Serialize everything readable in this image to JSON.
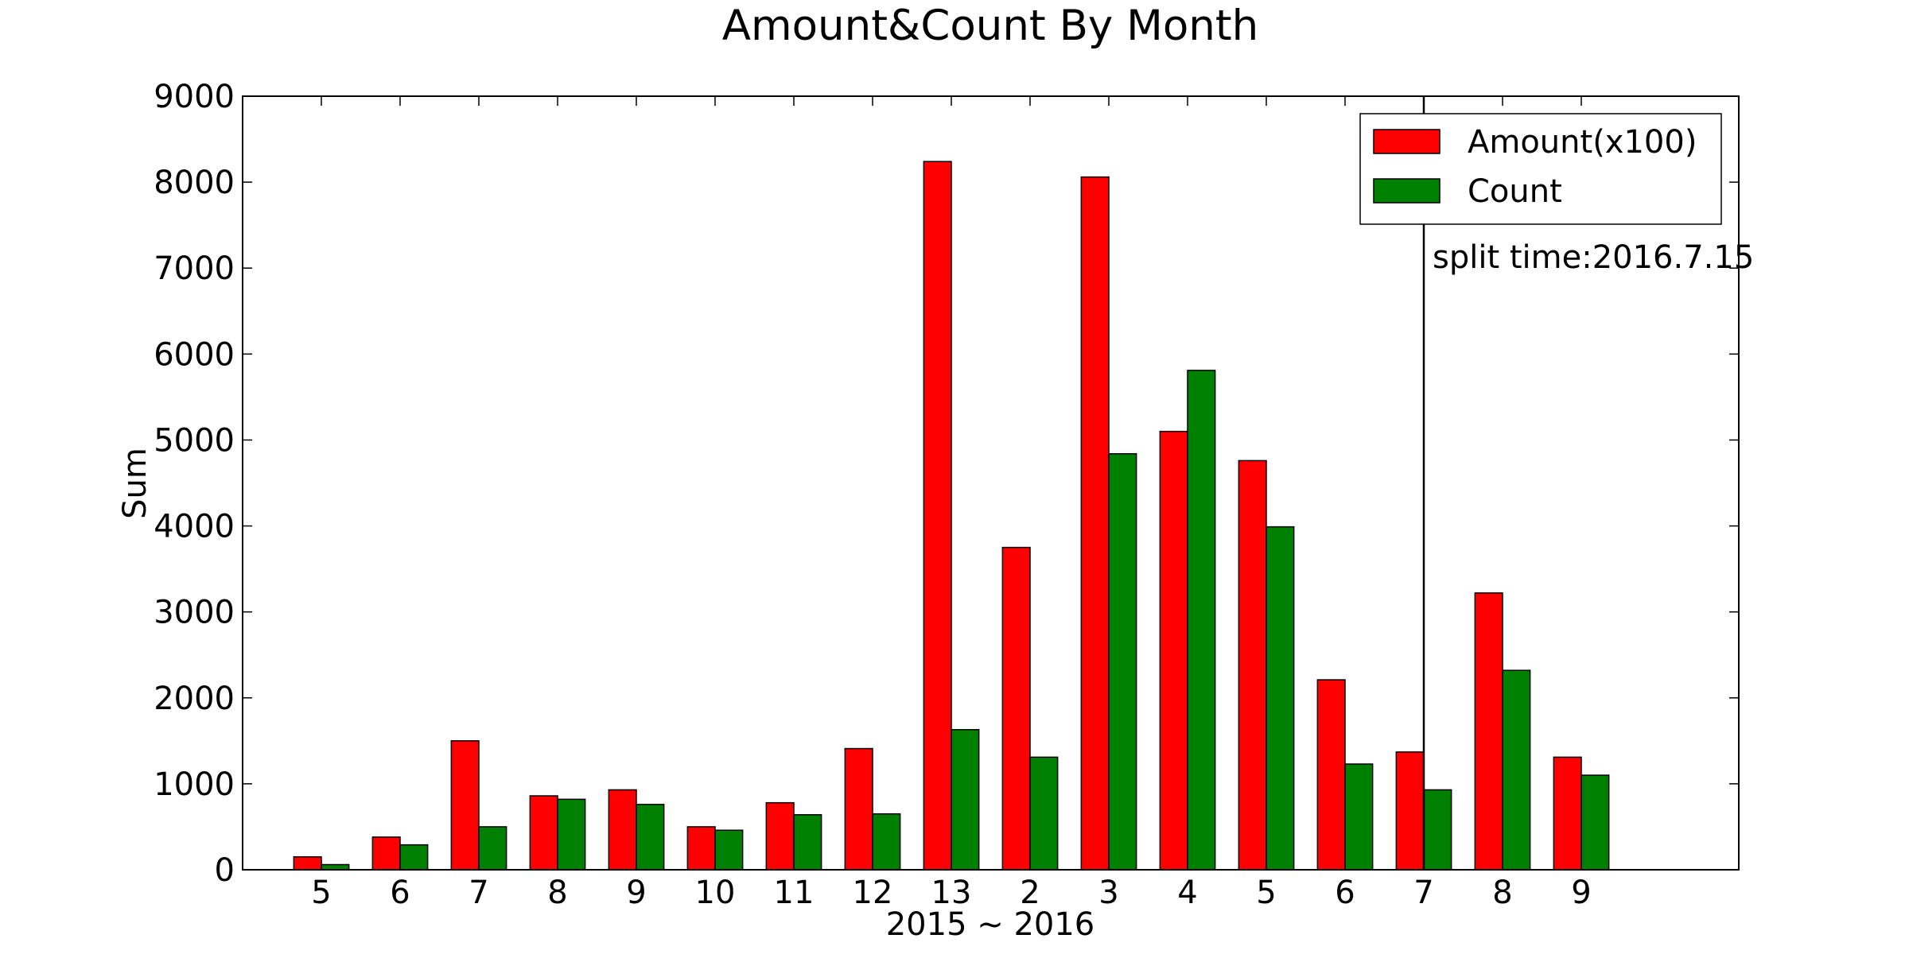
{
  "chart_data": {
    "type": "bar",
    "title": "Amount&Count By Month",
    "x_label": "2015 ~ 2016",
    "y_label": "Sum",
    "categories": [
      "5",
      "6",
      "7",
      "8",
      "9",
      "10",
      "11",
      "12",
      "13",
      "2",
      "3",
      "4",
      "5",
      "6",
      "7",
      "8",
      "9"
    ],
    "series": [
      {
        "name": "Amount(x100)",
        "color": "#ff0000",
        "values": [
          150,
          380,
          1500,
          860,
          930,
          500,
          780,
          1410,
          8240,
          3750,
          8060,
          5100,
          4760,
          2210,
          1370,
          3220,
          1310
        ]
      },
      {
        "name": "Count",
        "color": "#008000",
        "values": [
          60,
          290,
          500,
          820,
          760,
          460,
          640,
          650,
          1630,
          1310,
          4840,
          5810,
          3990,
          1230,
          930,
          2320,
          1100
        ]
      }
    ],
    "ylim": [
      0,
      9000
    ],
    "yticks": [
      0,
      1000,
      2000,
      3000,
      4000,
      5000,
      6000,
      7000,
      8000,
      9000
    ],
    "annotation": {
      "text": "split time:2016.7.15",
      "category": 14
    },
    "legend": "upper right",
    "grid": false
  }
}
